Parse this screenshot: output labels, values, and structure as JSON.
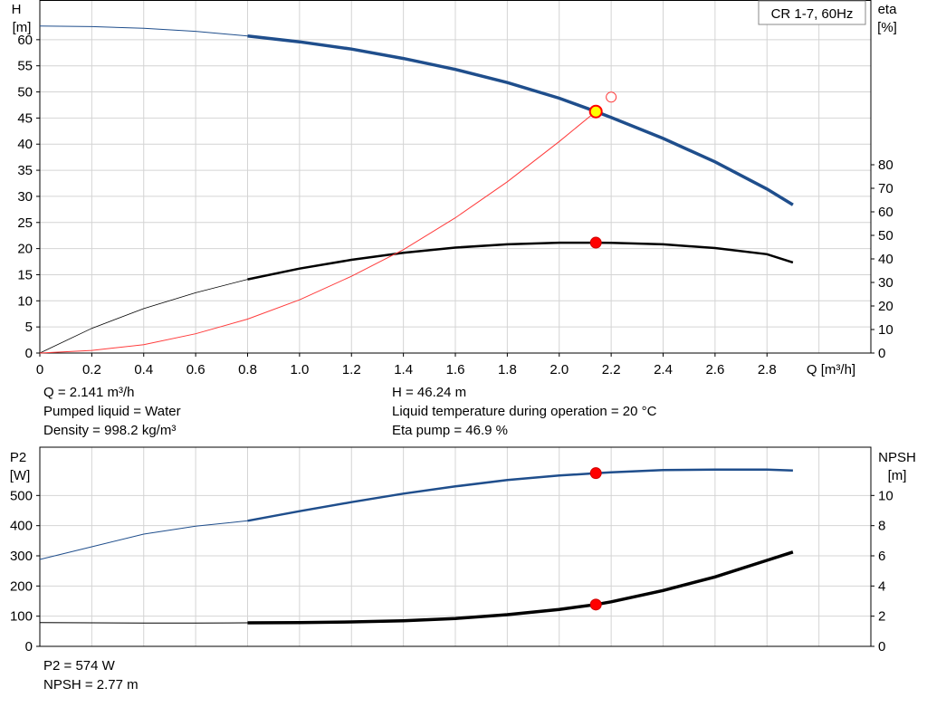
{
  "chart_data": [
    {
      "type": "line",
      "name": "performance",
      "title_box": "CR 1-7, 60Hz",
      "y_axis_left": {
        "label": "H",
        "unit": "[m]",
        "range": [
          0,
          60
        ],
        "ticks": [
          0,
          5,
          10,
          15,
          20,
          25,
          30,
          35,
          40,
          45,
          50,
          55,
          60
        ]
      },
      "y_axis_right": {
        "label": "eta",
        "unit": "[%]",
        "range": [
          0,
          80
        ],
        "ticks": [
          0,
          10,
          20,
          30,
          40,
          50,
          60,
          70,
          80
        ]
      },
      "x_axis": {
        "label": "Q [m³/h]",
        "range": [
          0,
          2.9
        ],
        "ticks": [
          "0",
          "0.2",
          "0.4",
          "0.6",
          "0.8",
          "1.0",
          "1.2",
          "1.4",
          "1.6",
          "1.8",
          "2.0",
          "2.2",
          "2.4",
          "2.6",
          "2.8"
        ]
      },
      "grid": true,
      "series": [
        {
          "axis": "left",
          "color": "#1f4e8c",
          "points": [
            [
              0,
              62.6
            ],
            [
              0.2,
              62.5
            ],
            [
              0.4,
              62.2
            ],
            [
              0.6,
              61.6
            ],
            [
              0.8,
              60.7
            ],
            [
              1.0,
              59.6
            ],
            [
              1.2,
              58.2
            ],
            [
              1.4,
              56.4
            ],
            [
              1.6,
              54.3
            ],
            [
              1.8,
              51.8
            ],
            [
              2.0,
              48.8
            ],
            [
              2.141,
              46.24
            ],
            [
              2.2,
              45.1
            ],
            [
              2.4,
              41.1
            ],
            [
              2.6,
              36.6
            ],
            [
              2.8,
              31.4
            ],
            [
              2.9,
              28.4
            ]
          ]
        },
        {
          "axis": "right",
          "color": "#000000",
          "points": [
            [
              0,
              0
            ],
            [
              0.2,
              10.5
            ],
            [
              0.4,
              18.9
            ],
            [
              0.6,
              25.6
            ],
            [
              0.8,
              31.3
            ],
            [
              1.0,
              35.9
            ],
            [
              1.2,
              39.6
            ],
            [
              1.4,
              42.6
            ],
            [
              1.6,
              44.8
            ],
            [
              1.8,
              46.2
            ],
            [
              2.0,
              46.9
            ],
            [
              2.141,
              46.9
            ],
            [
              2.2,
              46.8
            ],
            [
              2.4,
              46.2
            ],
            [
              2.6,
              44.6
            ],
            [
              2.8,
              42.0
            ],
            [
              2.9,
              38.5
            ]
          ]
        },
        {
          "axis": "left",
          "color": "#ff3b3b",
          "role": "system",
          "points": [
            [
              0,
              0
            ],
            [
              0.2,
              0.5
            ],
            [
              0.4,
              1.6
            ],
            [
              0.6,
              3.7
            ],
            [
              0.8,
              6.5
            ],
            [
              1.0,
              10.2
            ],
            [
              1.2,
              14.7
            ],
            [
              1.4,
              19.8
            ],
            [
              1.6,
              25.9
            ],
            [
              1.8,
              32.8
            ],
            [
              2.0,
              40.5
            ],
            [
              2.141,
              46.24
            ]
          ]
        }
      ],
      "operating_point": {
        "Q": 2.141,
        "H": 46.24,
        "eta": 46.9
      }
    },
    {
      "type": "line",
      "name": "power-npsh",
      "y_axis_left": {
        "label": "P2",
        "unit": "[W]",
        "range": [
          0,
          600
        ],
        "ticks": [
          0,
          100,
          200,
          300,
          400,
          500
        ]
      },
      "y_axis_right": {
        "label": "NPSH",
        "unit": "[m]",
        "range": [
          0,
          12
        ],
        "ticks": [
          0,
          2,
          4,
          6,
          8,
          10
        ]
      },
      "x_axis": {
        "range": [
          0,
          2.9
        ]
      },
      "grid": true,
      "series": [
        {
          "axis": "left",
          "color": "#1f4e8c",
          "points": [
            [
              0,
              288
            ],
            [
              0.2,
              330
            ],
            [
              0.4,
              372
            ],
            [
              0.6,
              398
            ],
            [
              0.8,
              416
            ],
            [
              1.0,
              448
            ],
            [
              1.2,
              478
            ],
            [
              1.4,
              506
            ],
            [
              1.6,
              530
            ],
            [
              1.8,
              551
            ],
            [
              2.0,
              566
            ],
            [
              2.141,
              574
            ],
            [
              2.2,
              577
            ],
            [
              2.4,
              584
            ],
            [
              2.6,
              586
            ],
            [
              2.8,
              586
            ],
            [
              2.9,
              583
            ]
          ]
        },
        {
          "axis": "right",
          "color": "#000000",
          "points": [
            [
              0,
              1.58
            ],
            [
              0.2,
              1.56
            ],
            [
              0.4,
              1.55
            ],
            [
              0.6,
              1.55
            ],
            [
              0.8,
              1.56
            ],
            [
              1.0,
              1.58
            ],
            [
              1.2,
              1.62
            ],
            [
              1.4,
              1.7
            ],
            [
              1.6,
              1.85
            ],
            [
              1.8,
              2.1
            ],
            [
              2.0,
              2.45
            ],
            [
              2.141,
              2.77
            ],
            [
              2.2,
              2.95
            ],
            [
              2.4,
              3.7
            ],
            [
              2.6,
              4.6
            ],
            [
              2.8,
              5.7
            ],
            [
              2.9,
              6.25
            ]
          ]
        }
      ],
      "operating_point": {
        "Q": 2.141,
        "P2": 574,
        "NPSH": 2.77
      }
    }
  ],
  "info_top_left": [
    "Q = 2.141 m³/h",
    "Pumped liquid = Water",
    "Density = 998.2 kg/m³"
  ],
  "info_top_right": [
    "H = 46.24 m",
    "Liquid temperature during operation = 20 °C",
    "Eta pump = 46.9 %"
  ],
  "info_bottom_left": [
    "P2 = 574 W",
    "NPSH = 2.77 m"
  ]
}
